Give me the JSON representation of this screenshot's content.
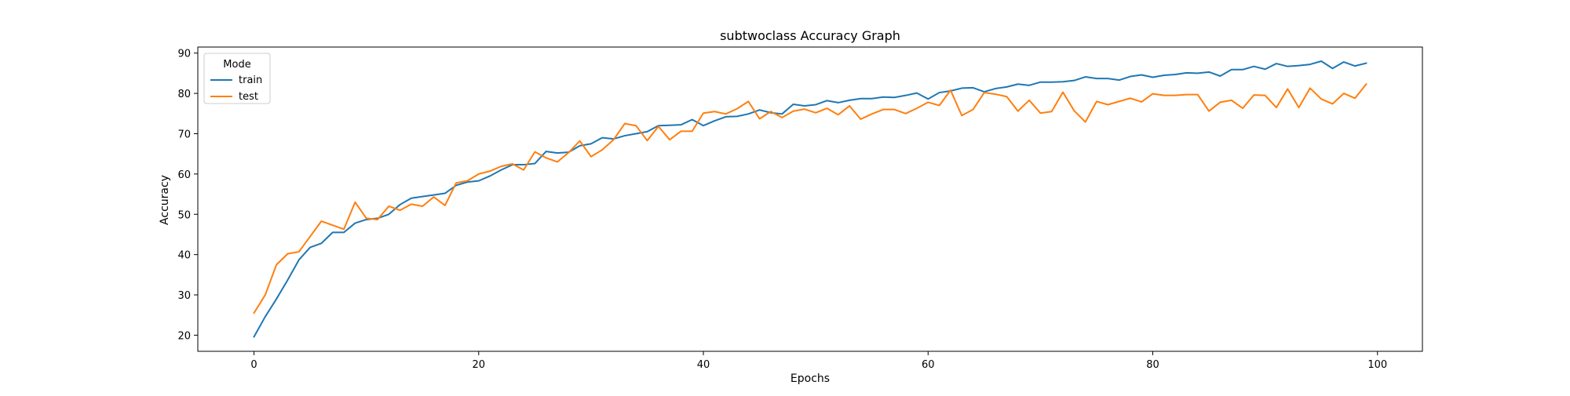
{
  "chart_data": {
    "type": "line",
    "title": "subtwoclass Accuracy Graph",
    "xlabel": "Epochs",
    "ylabel": "Accuracy",
    "xlim": [
      -5,
      104
    ],
    "ylim": [
      16,
      91.5
    ],
    "xticks": [
      0,
      20,
      40,
      60,
      80,
      100
    ],
    "yticks": [
      20,
      30,
      40,
      50,
      60,
      70,
      80,
      90
    ],
    "grid": false,
    "legend": {
      "title": "Mode",
      "placement": "top-left"
    },
    "x": [
      0,
      1,
      2,
      3,
      4,
      5,
      6,
      7,
      8,
      9,
      10,
      11,
      12,
      13,
      14,
      15,
      16,
      17,
      18,
      19,
      20,
      21,
      22,
      23,
      24,
      25,
      26,
      27,
      28,
      29,
      30,
      31,
      32,
      33,
      34,
      35,
      36,
      37,
      38,
      39,
      40,
      41,
      42,
      43,
      44,
      45,
      46,
      47,
      48,
      49,
      50,
      51,
      52,
      53,
      54,
      55,
      56,
      57,
      58,
      59,
      60,
      61,
      62,
      63,
      64,
      65,
      66,
      67,
      68,
      69,
      70,
      71,
      72,
      73,
      74,
      75,
      76,
      77,
      78,
      79,
      80,
      81,
      82,
      83,
      84,
      85,
      86,
      87,
      88,
      89,
      90,
      91,
      92,
      93,
      94,
      95,
      96,
      97,
      98,
      99
    ],
    "series": [
      {
        "name": "train",
        "color": "#1f77b4",
        "values": [
          19.6,
          24.6,
          29.0,
          33.7,
          38.7,
          41.8,
          42.8,
          45.5,
          45.5,
          47.8,
          48.7,
          49.0,
          50.0,
          52.4,
          54.0,
          54.4,
          54.8,
          55.2,
          57.2,
          58.0,
          58.3,
          59.5,
          61.0,
          62.3,
          62.3,
          62.6,
          65.6,
          65.2,
          65.4,
          67.0,
          67.5,
          69.0,
          68.7,
          69.5,
          70.0,
          70.5,
          72.0,
          72.1,
          72.2,
          73.5,
          72.0,
          73.2,
          74.2,
          74.3,
          74.9,
          75.9,
          75.2,
          74.9,
          77.3,
          76.9,
          77.2,
          78.2,
          77.7,
          78.3,
          78.7,
          78.7,
          79.1,
          79.0,
          79.5,
          80.1,
          78.6,
          80.2,
          80.6,
          81.3,
          81.4,
          80.4,
          81.2,
          81.6,
          82.3,
          82.0,
          82.8,
          82.8,
          82.9,
          83.2,
          84.1,
          83.7,
          83.7,
          83.3,
          84.2,
          84.6,
          84.0,
          84.5,
          84.7,
          85.1,
          85.0,
          85.3,
          84.3,
          85.9,
          85.9,
          86.7,
          86.0,
          87.4,
          86.7,
          86.9,
          87.2,
          88.0,
          86.2,
          87.8,
          86.8,
          87.5
        ]
      },
      {
        "name": "test",
        "color": "#ff7f0e",
        "values": [
          25.5,
          30.0,
          37.5,
          40.2,
          40.7,
          44.5,
          48.3,
          47.3,
          46.3,
          53.0,
          49.0,
          48.7,
          52.0,
          51.0,
          52.5,
          52.0,
          54.3,
          52.2,
          57.8,
          58.3,
          60.0,
          60.7,
          61.9,
          62.5,
          61.0,
          65.5,
          64.0,
          63.0,
          65.3,
          68.2,
          64.3,
          66.0,
          68.5,
          72.5,
          72.0,
          68.3,
          71.8,
          68.5,
          70.6,
          70.6,
          75.1,
          75.5,
          74.9,
          76.2,
          78.0,
          73.7,
          75.5,
          74.0,
          75.6,
          76.1,
          75.2,
          76.3,
          74.7,
          76.9,
          73.6,
          74.9,
          76.0,
          76.0,
          75.0,
          76.3,
          77.8,
          77.0,
          80.8,
          74.5,
          76.0,
          80.2,
          79.8,
          79.2,
          75.6,
          78.3,
          75.1,
          75.5,
          80.3,
          75.7,
          72.9,
          78.0,
          77.2,
          78.0,
          78.8,
          77.9,
          79.9,
          79.5,
          79.5,
          79.7,
          79.7,
          75.6,
          77.8,
          78.3,
          76.3,
          79.6,
          79.5,
          76.5,
          81.1,
          76.5,
          81.3,
          78.6,
          77.4,
          80.0,
          78.8,
          82.3
        ]
      }
    ]
  }
}
